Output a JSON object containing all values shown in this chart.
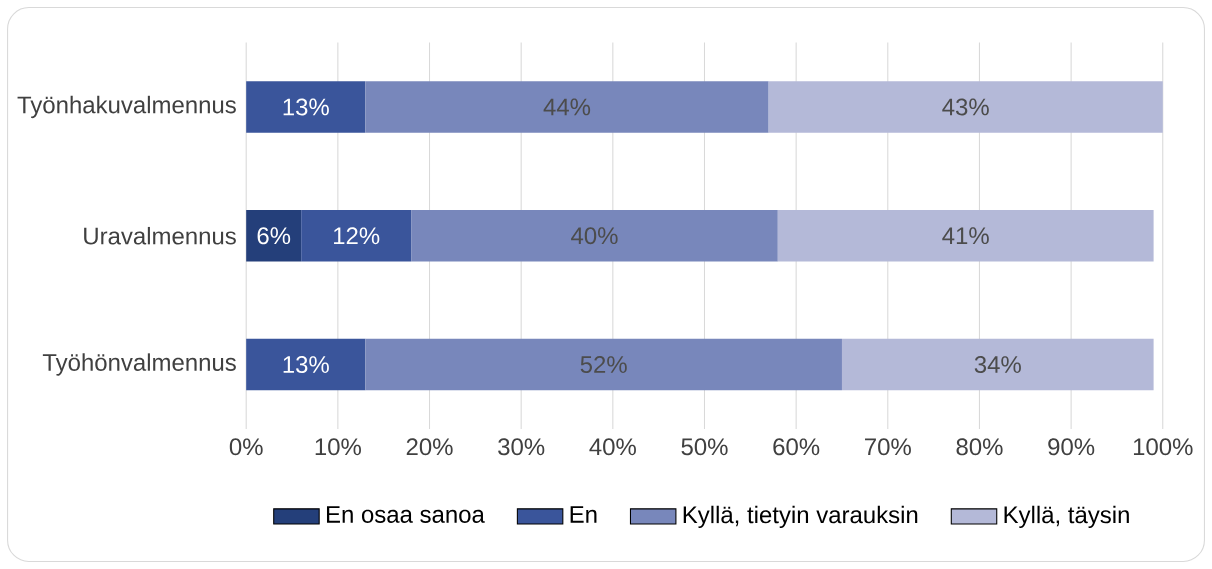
{
  "chart_data": {
    "type": "bar",
    "orientation": "horizontal",
    "stacked": true,
    "categories": [
      "Työnhakuvalmennus",
      "Uravalmennus",
      "Työhönvalmennus"
    ],
    "series": [
      {
        "name": "En osaa sanoa",
        "color": "#243f7a",
        "values": [
          null,
          6,
          null
        ],
        "value_labels": [
          null,
          "6%",
          null
        ]
      },
      {
        "name": "En",
        "color": "#3a559b",
        "values": [
          13,
          12,
          13
        ],
        "value_labels": [
          "13%",
          "12%",
          "13%"
        ]
      },
      {
        "name": "Kyllä, tietyin varauksin",
        "color": "#7887bb",
        "values": [
          44,
          40,
          52
        ],
        "value_labels": [
          "44%",
          "40%",
          "52%"
        ]
      },
      {
        "name": "Kyllä, täysin",
        "color": "#b4b9d8",
        "values": [
          43,
          41,
          34
        ],
        "value_labels": [
          "43%",
          "41%",
          "34%"
        ]
      }
    ],
    "xlim": [
      0,
      100
    ],
    "xticks": [
      {
        "value": 0,
        "label": "0%"
      },
      {
        "value": 10,
        "label": "10%"
      },
      {
        "value": 20,
        "label": "20%"
      },
      {
        "value": 30,
        "label": "30%"
      },
      {
        "value": 40,
        "label": "40%"
      },
      {
        "value": 50,
        "label": "50%"
      },
      {
        "value": 60,
        "label": "60%"
      },
      {
        "value": 70,
        "label": "70%"
      },
      {
        "value": 80,
        "label": "80%"
      },
      {
        "value": 90,
        "label": "90%"
      },
      {
        "value": 100,
        "label": "100%"
      }
    ],
    "grid": "x",
    "legend": "bottom"
  }
}
